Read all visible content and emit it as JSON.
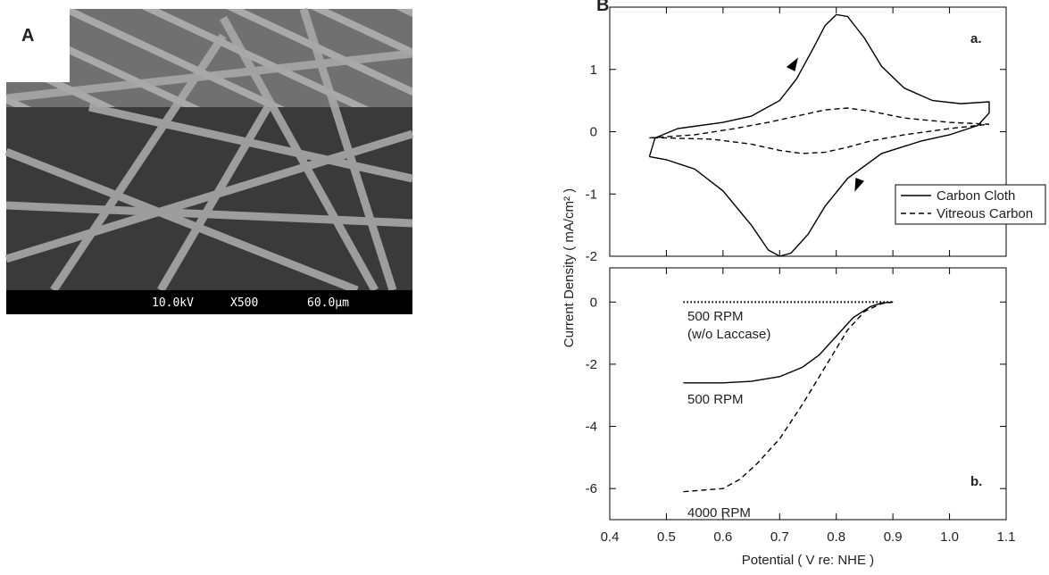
{
  "figure": {
    "panel_a_label": "A",
    "panel_b_label": "B",
    "sem_caption": [
      "10.0kV",
      "X500",
      "60.0μm"
    ]
  },
  "chart_data": [
    {
      "type": "line",
      "y_label": "Current Density ( mA/cm² )",
      "annotation": "a.",
      "xlim": [
        0.4,
        1.1
      ],
      "xticks": [
        0.4,
        0.5,
        0.6,
        0.7,
        0.8,
        0.9,
        1.0,
        1.1
      ],
      "ylim": [
        -2,
        2
      ],
      "yticks": [
        -2,
        -1,
        0,
        1
      ],
      "legend": "lower right",
      "series": [
        {
          "name": "Carbon Cloth",
          "color": "#000000",
          "dash": "solid",
          "x": [
            0.47,
            0.48,
            0.52,
            0.6,
            0.65,
            0.7,
            0.73,
            0.76,
            0.78,
            0.8,
            0.82,
            0.85,
            0.88,
            0.92,
            0.97,
            1.02,
            1.07,
            1.07,
            1.05,
            1.0,
            0.95,
            0.88,
            0.82,
            0.78,
            0.75,
            0.72,
            0.7,
            0.68,
            0.65,
            0.6,
            0.55,
            0.5,
            0.47
          ],
          "values": [
            -0.4,
            -0.1,
            0.05,
            0.15,
            0.25,
            0.5,
            0.85,
            1.35,
            1.7,
            1.88,
            1.85,
            1.5,
            1.05,
            0.7,
            0.5,
            0.45,
            0.48,
            0.3,
            0.1,
            -0.05,
            -0.15,
            -0.35,
            -0.75,
            -1.2,
            -1.65,
            -1.95,
            -2.0,
            -1.9,
            -1.5,
            -0.95,
            -0.6,
            -0.45,
            -0.4
          ]
        },
        {
          "name": "Vitreous Carbon",
          "color": "#000000",
          "dash": "dashed",
          "x": [
            0.47,
            0.55,
            0.62,
            0.68,
            0.73,
            0.78,
            0.82,
            0.86,
            0.92,
            1.0,
            1.07,
            1.0,
            0.92,
            0.86,
            0.82,
            0.78,
            0.74,
            0.7,
            0.65,
            0.58,
            0.5,
            0.47
          ],
          "values": [
            -0.1,
            -0.05,
            0.05,
            0.15,
            0.25,
            0.35,
            0.38,
            0.33,
            0.22,
            0.15,
            0.12,
            0.05,
            -0.05,
            -0.15,
            -0.25,
            -0.33,
            -0.35,
            -0.3,
            -0.2,
            -0.12,
            -0.1,
            -0.1
          ]
        }
      ]
    },
    {
      "type": "line",
      "x_label": "Potential ( V re: NHE )",
      "annotation": "b.",
      "series_labels": [
        "500 RPM",
        "(w/o Laccase)",
        "500 RPM",
        "4000 RPM"
      ],
      "xlim": [
        0.4,
        1.1
      ],
      "xticks": [
        0.4,
        0.5,
        0.6,
        0.7,
        0.8,
        0.9,
        {
          "value": 1.0,
          "label": "1.0"
        },
        1.1
      ],
      "ylim": [
        -7,
        1.1
      ],
      "yticks": [
        0,
        -2,
        -4,
        -6
      ],
      "series": [
        {
          "color": "#000000",
          "dash": "dotted",
          "x": [
            0.53,
            0.6,
            0.7,
            0.8,
            0.9
          ],
          "values": [
            0,
            0,
            0,
            0,
            0
          ]
        },
        {
          "color": "#000000",
          "dash": "solid",
          "x": [
            0.53,
            0.6,
            0.65,
            0.7,
            0.74,
            0.77,
            0.8,
            0.83,
            0.86,
            0.88,
            0.9
          ],
          "values": [
            -2.6,
            -2.6,
            -2.55,
            -2.4,
            -2.1,
            -1.7,
            -1.1,
            -0.5,
            -0.15,
            -0.03,
            0
          ]
        },
        {
          "color": "#000000",
          "dash": "dashed",
          "x": [
            0.53,
            0.6,
            0.63,
            0.66,
            0.7,
            0.74,
            0.78,
            0.82,
            0.85,
            0.88,
            0.9
          ],
          "values": [
            -6.1,
            -6.0,
            -5.7,
            -5.2,
            -4.4,
            -3.3,
            -2.1,
            -0.9,
            -0.3,
            -0.05,
            0
          ]
        }
      ]
    }
  ]
}
